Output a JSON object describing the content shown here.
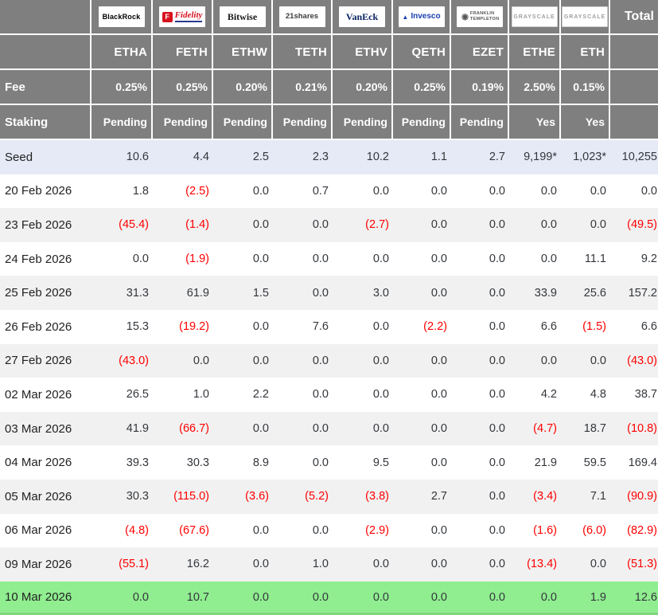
{
  "row_labels": {
    "fee": "Fee",
    "staking": "Staking",
    "total": "Total"
  },
  "providers": [
    {
      "name": "BlackRock",
      "style": "blackrock",
      "logo_text": "BlackRock",
      "ticker": "ETHA",
      "fee": "0.25%",
      "staking": "Pending"
    },
    {
      "name": "Fidelity",
      "style": "fidelity",
      "logo_mark": "F",
      "logo_text": "Fidelity",
      "ticker": "FETH",
      "fee": "0.25%",
      "staking": "Pending"
    },
    {
      "name": "Bitwise",
      "style": "bitwise",
      "logo_text": "Bitwise",
      "ticker": "ETHW",
      "fee": "0.20%",
      "staking": "Pending"
    },
    {
      "name": "21shares",
      "style": "shares21",
      "logo_text": "21shares",
      "ticker": "TETH",
      "fee": "0.21%",
      "staking": "Pending"
    },
    {
      "name": "VanEck",
      "style": "vaneck",
      "logo_text": "VanEck",
      "ticker": "ETHV",
      "fee": "0.20%",
      "staking": "Pending"
    },
    {
      "name": "Invesco",
      "style": "invesco",
      "logo_mark": "▲",
      "logo_text": "Invesco",
      "ticker": "QETH",
      "fee": "0.25%",
      "staking": "Pending"
    },
    {
      "name": "Franklin Templeton",
      "style": "franklin",
      "logo_mark": "◉",
      "logo_text": "FRANKLIN TEMPLETON",
      "ticker": "EZET",
      "fee": "0.19%",
      "staking": "Pending"
    },
    {
      "name": "Grayscale",
      "style": "grayscale",
      "logo_text": "GRAYSCALE",
      "ticker": "ETHE",
      "fee": "2.50%",
      "staking": "Yes"
    },
    {
      "name": "Grayscale",
      "style": "grayscale",
      "logo_text": "GRAYSCALE",
      "ticker": "ETH",
      "fee": "0.15%",
      "staking": "Yes"
    }
  ],
  "rows": [
    {
      "label": "Seed",
      "values": [
        "10.6",
        "4.4",
        "2.5",
        "2.3",
        "10.2",
        "1.1",
        "2.7",
        "9,199*",
        "1,023*"
      ],
      "total": "10,255",
      "highlight": "seed"
    },
    {
      "label": "20 Feb 2026",
      "values": [
        "1.8",
        "(2.5)",
        "0.0",
        "0.7",
        "0.0",
        "0.0",
        "0.0",
        "0.0",
        "0.0"
      ],
      "total": "0.0"
    },
    {
      "label": "23 Feb 2026",
      "values": [
        "(45.4)",
        "(1.4)",
        "0.0",
        "0.0",
        "(2.7)",
        "0.0",
        "0.0",
        "0.0",
        "0.0"
      ],
      "total": "(49.5)"
    },
    {
      "label": "24 Feb 2026",
      "values": [
        "0.0",
        "(1.9)",
        "0.0",
        "0.0",
        "0.0",
        "0.0",
        "0.0",
        "0.0",
        "11.1"
      ],
      "total": "9.2"
    },
    {
      "label": "25 Feb 2026",
      "values": [
        "31.3",
        "61.9",
        "1.5",
        "0.0",
        "3.0",
        "0.0",
        "0.0",
        "33.9",
        "25.6"
      ],
      "total": "157.2"
    },
    {
      "label": "26 Feb 2026",
      "values": [
        "15.3",
        "(19.2)",
        "0.0",
        "7.6",
        "0.0",
        "(2.2)",
        "0.0",
        "6.6",
        "(1.5)"
      ],
      "total": "6.6"
    },
    {
      "label": "27 Feb 2026",
      "values": [
        "(43.0)",
        "0.0",
        "0.0",
        "0.0",
        "0.0",
        "0.0",
        "0.0",
        "0.0",
        "0.0"
      ],
      "total": "(43.0)"
    },
    {
      "label": "02 Mar 2026",
      "values": [
        "26.5",
        "1.0",
        "2.2",
        "0.0",
        "0.0",
        "0.0",
        "0.0",
        "4.2",
        "4.8"
      ],
      "total": "38.7"
    },
    {
      "label": "03 Mar 2026",
      "values": [
        "41.9",
        "(66.7)",
        "0.0",
        "0.0",
        "0.0",
        "0.0",
        "0.0",
        "(4.7)",
        "18.7"
      ],
      "total": "(10.8)"
    },
    {
      "label": "04 Mar 2026",
      "values": [
        "39.3",
        "30.3",
        "8.9",
        "0.0",
        "9.5",
        "0.0",
        "0.0",
        "21.9",
        "59.5"
      ],
      "total": "169.4"
    },
    {
      "label": "05 Mar 2026",
      "values": [
        "30.3",
        "(115.0)",
        "(3.6)",
        "(5.2)",
        "(3.8)",
        "2.7",
        "0.0",
        "(3.4)",
        "7.1"
      ],
      "total": "(90.9)"
    },
    {
      "label": "06 Mar 2026",
      "values": [
        "(4.8)",
        "(67.6)",
        "0.0",
        "0.0",
        "(2.9)",
        "0.0",
        "0.0",
        "(1.6)",
        "(6.0)"
      ],
      "total": "(82.9)"
    },
    {
      "label": "09 Mar 2026",
      "values": [
        "(55.1)",
        "16.2",
        "0.0",
        "1.0",
        "0.0",
        "0.0",
        "0.0",
        "(13.4)",
        "0.0"
      ],
      "total": "(51.3)"
    },
    {
      "label": "10 Mar 2026",
      "values": [
        "0.0",
        "10.7",
        "0.0",
        "0.0",
        "0.0",
        "0.0",
        "0.0",
        "0.0",
        "1.9"
      ],
      "total": "12.6",
      "highlight": "green"
    }
  ],
  "colors": {
    "header_bg": "#7f7f7f",
    "header_text": "#ffffff",
    "seed_row_bg": "#e6eaf7",
    "stripe_bg": "#f1f1f1",
    "green_row_bg": "#90ee90",
    "green_row_border": "#7fd67f",
    "negative_text": "#ff0000",
    "value_text": "#33363b",
    "label_text": "#222222"
  },
  "chart_data": {
    "type": "table",
    "columns": [
      "",
      "ETHA",
      "FETH",
      "ETHW",
      "TETH",
      "ETHV",
      "QETH",
      "EZET",
      "ETHE",
      "ETH",
      "Total"
    ],
    "issuers": [
      "BlackRock",
      "Fidelity",
      "Bitwise",
      "21shares",
      "VanEck",
      "Invesco",
      "Franklin Templeton",
      "Grayscale",
      "Grayscale",
      ""
    ],
    "rows": [
      [
        "Fee",
        "0.25%",
        "0.25%",
        "0.20%",
        "0.21%",
        "0.20%",
        "0.25%",
        "0.19%",
        "2.50%",
        "0.15%",
        ""
      ],
      [
        "Staking",
        "Pending",
        "Pending",
        "Pending",
        "Pending",
        "Pending",
        "Pending",
        "Pending",
        "Yes",
        "Yes",
        ""
      ],
      [
        "Seed",
        10.6,
        4.4,
        2.5,
        2.3,
        10.2,
        1.1,
        2.7,
        "9,199*",
        "1,023*",
        "10,255"
      ],
      [
        "20 Feb 2026",
        1.8,
        -2.5,
        0.0,
        0.7,
        0.0,
        0.0,
        0.0,
        0.0,
        0.0,
        0.0
      ],
      [
        "23 Feb 2026",
        -45.4,
        -1.4,
        0.0,
        0.0,
        -2.7,
        0.0,
        0.0,
        0.0,
        0.0,
        -49.5
      ],
      [
        "24 Feb 2026",
        0.0,
        -1.9,
        0.0,
        0.0,
        0.0,
        0.0,
        0.0,
        0.0,
        11.1,
        9.2
      ],
      [
        "25 Feb 2026",
        31.3,
        61.9,
        1.5,
        0.0,
        3.0,
        0.0,
        0.0,
        33.9,
        25.6,
        157.2
      ],
      [
        "26 Feb 2026",
        15.3,
        -19.2,
        0.0,
        7.6,
        0.0,
        -2.2,
        0.0,
        6.6,
        -1.5,
        6.6
      ],
      [
        "27 Feb 2026",
        -43.0,
        0.0,
        0.0,
        0.0,
        0.0,
        0.0,
        0.0,
        0.0,
        0.0,
        -43.0
      ],
      [
        "02 Mar 2026",
        26.5,
        1.0,
        2.2,
        0.0,
        0.0,
        0.0,
        0.0,
        4.2,
        4.8,
        38.7
      ],
      [
        "03 Mar 2026",
        41.9,
        -66.7,
        0.0,
        0.0,
        0.0,
        0.0,
        0.0,
        -4.7,
        18.7,
        -10.8
      ],
      [
        "04 Mar 2026",
        39.3,
        30.3,
        8.9,
        0.0,
        9.5,
        0.0,
        0.0,
        21.9,
        59.5,
        169.4
      ],
      [
        "05 Mar 2026",
        30.3,
        -115.0,
        -3.6,
        -5.2,
        -3.8,
        2.7,
        0.0,
        -3.4,
        7.1,
        -90.9
      ],
      [
        "06 Mar 2026",
        -4.8,
        -67.6,
        0.0,
        0.0,
        -2.9,
        0.0,
        0.0,
        -1.6,
        -6.0,
        -82.9
      ],
      [
        "09 Mar 2026",
        -55.1,
        16.2,
        0.0,
        1.0,
        0.0,
        0.0,
        0.0,
        -13.4,
        0.0,
        -51.3
      ],
      [
        "10 Mar 2026",
        0.0,
        10.7,
        0.0,
        0.0,
        0.0,
        0.0,
        0.0,
        0.0,
        1.9,
        12.6
      ]
    ]
  }
}
